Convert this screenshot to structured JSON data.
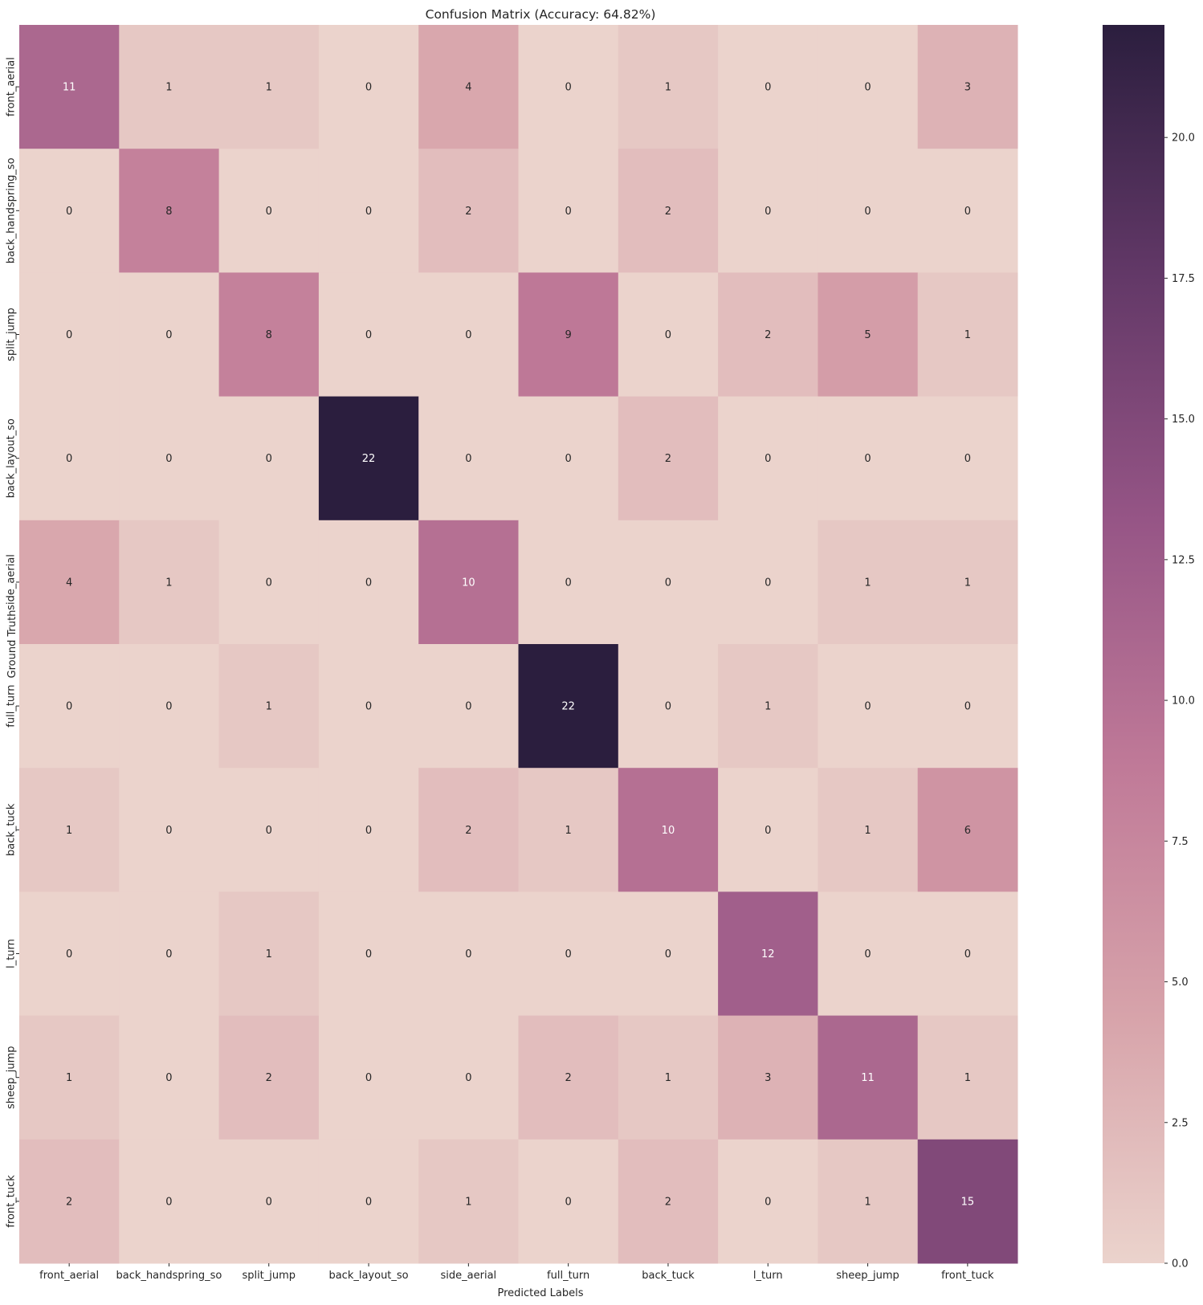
{
  "chart_data": {
    "type": "heatmap",
    "title": "Confusion Matrix (Accuracy: 64.82%)",
    "xlabel": "Predicted Labels",
    "ylabel": "Ground Truth",
    "x_categories": [
      "front_aerial",
      "back_handspring_so",
      "split_jump",
      "back_layout_so",
      "side_aerial",
      "full_turn",
      "back_tuck",
      "l_turn",
      "sheep_jump",
      "front_tuck"
    ],
    "y_categories": [
      "front_aerial",
      "back_handspring_so",
      "split_jump",
      "back_layout_so",
      "side_aerial",
      "full_turn",
      "back_tuck",
      "l_turn",
      "sheep_jump",
      "front_tuck"
    ],
    "values": [
      [
        11,
        1,
        1,
        0,
        4,
        0,
        1,
        0,
        0,
        3
      ],
      [
        0,
        8,
        0,
        0,
        2,
        0,
        2,
        0,
        0,
        0
      ],
      [
        0,
        0,
        8,
        0,
        0,
        9,
        0,
        2,
        5,
        1
      ],
      [
        0,
        0,
        0,
        22,
        0,
        0,
        2,
        0,
        0,
        0
      ],
      [
        4,
        1,
        0,
        0,
        10,
        0,
        0,
        0,
        1,
        1
      ],
      [
        0,
        0,
        1,
        0,
        0,
        22,
        0,
        1,
        0,
        0
      ],
      [
        1,
        0,
        0,
        0,
        2,
        1,
        10,
        0,
        1,
        6
      ],
      [
        0,
        0,
        1,
        0,
        0,
        0,
        0,
        12,
        0,
        0
      ],
      [
        1,
        0,
        2,
        0,
        0,
        2,
        1,
        3,
        11,
        1
      ],
      [
        2,
        0,
        0,
        0,
        1,
        0,
        2,
        0,
        1,
        15
      ]
    ],
    "colorbar": {
      "range": [
        0,
        22
      ],
      "ticks": [
        "0.0",
        "2.5",
        "5.0",
        "7.5",
        "10.0",
        "12.5",
        "15.0",
        "17.5",
        "20.0"
      ],
      "colors": [
        "#ebd3cc",
        "#d7a3aa",
        "#c07a98",
        "#965586",
        "#623867",
        "#2b1e3e"
      ]
    }
  }
}
